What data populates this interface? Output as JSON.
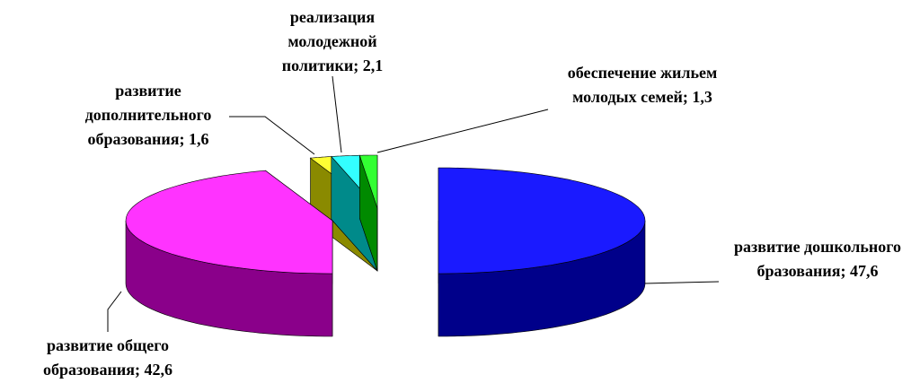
{
  "chart_data": {
    "type": "pie3d",
    "categories": [
      "развитие дошкольного бразования;",
      "развитие общего образования;",
      "развитие дополнительного образования;",
      "реализация молодежной политики;",
      "обеспечение жильем молодых семей;"
    ],
    "values": [
      47.6,
      42.6,
      1.6,
      2.1,
      1.3
    ],
    "value_labels": [
      "47,6",
      "42,6",
      "1,6",
      "2,1",
      "1,3"
    ],
    "colors": [
      "#1a1aff",
      "#ff33ff",
      "#ffff33",
      "#33ffff",
      "#33ff33"
    ],
    "side_colors": [
      "#00008a",
      "#8a008a",
      "#8a8a00",
      "#008a8a",
      "#008a00"
    ]
  }
}
